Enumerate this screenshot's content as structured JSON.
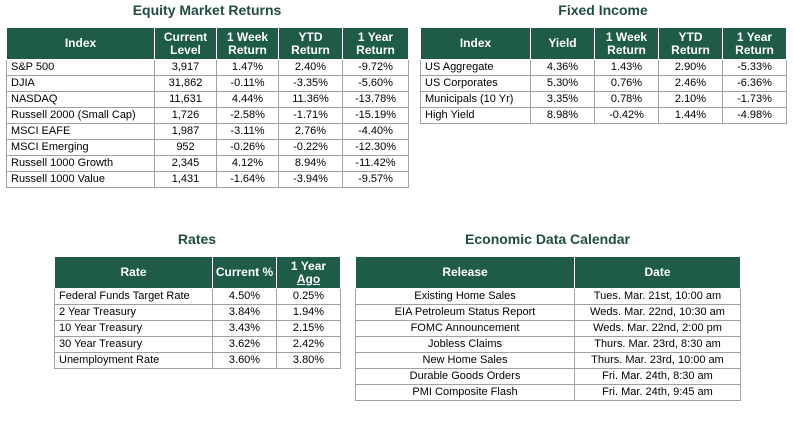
{
  "equity": {
    "title": "Equity Market Returns",
    "headers": [
      "Index",
      "Current Level",
      "1 Week Return",
      "YTD Return",
      "1 Year Return"
    ],
    "rows": [
      [
        "S&P 500",
        "3,917",
        "1.47%",
        "2.40%",
        "-9.72%"
      ],
      [
        "DJIA",
        "31,862",
        "-0.11%",
        "-3.35%",
        "-5.60%"
      ],
      [
        "NASDAQ",
        "11,631",
        "4.44%",
        "11.36%",
        "-13.78%"
      ],
      [
        "Russell 2000 (Small Cap)",
        "1,726",
        "-2.58%",
        "-1.71%",
        "-15.19%"
      ],
      [
        "MSCI EAFE",
        "1,987",
        "-3.11%",
        "2.76%",
        "-4.40%"
      ],
      [
        "MSCI Emerging",
        "952",
        "-0.26%",
        "-0.22%",
        "-12.30%"
      ],
      [
        "Russell 1000 Growth",
        "2,345",
        "4.12%",
        "8.94%",
        "-11.42%"
      ],
      [
        "Russell 1000 Value",
        "1,431",
        "-1.64%",
        "-3.94%",
        "-9.57%"
      ]
    ]
  },
  "fixed_income": {
    "title": "Fixed Income",
    "headers": [
      "Index",
      "Yield",
      "1 Week Return",
      "YTD Return",
      "1 Year Return"
    ],
    "rows": [
      [
        "US Aggregate",
        "4.36%",
        "1.43%",
        "2.90%",
        "-5.33%"
      ],
      [
        "US Corporates",
        "5.30%",
        "0.76%",
        "2.46%",
        "-6.36%"
      ],
      [
        "Municipals (10 Yr)",
        "3.35%",
        "0.78%",
        "2.10%",
        "-1.73%"
      ],
      [
        "High Yield",
        "8.98%",
        "-0.42%",
        "1.44%",
        "-4.98%"
      ]
    ]
  },
  "rates": {
    "title": "Rates",
    "headers": [
      "Rate",
      "Current %",
      "1 Year",
      "Ago"
    ],
    "rows": [
      [
        "Federal Funds Target Rate",
        "4.50%",
        "0.25%"
      ],
      [
        "2 Year Treasury",
        "3.84%",
        "1.94%"
      ],
      [
        "10 Year Treasury",
        "3.43%",
        "2.15%"
      ],
      [
        "30 Year Treasury",
        "3.62%",
        "2.42%"
      ],
      [
        "Unemployment Rate",
        "3.60%",
        "3.80%"
      ]
    ]
  },
  "calendar": {
    "title": "Economic Data Calendar",
    "headers": [
      "Release",
      "Date"
    ],
    "rows": [
      [
        "Existing Home Sales",
        "Tues. Mar. 21st, 10:00 am"
      ],
      [
        "EIA Petroleum Status Report",
        "Weds. Mar. 22nd, 10:30 am"
      ],
      [
        "FOMC Announcement",
        "Weds. Mar. 22nd, 2:00 pm"
      ],
      [
        "Jobless Claims",
        "Thurs. Mar. 23rd, 8:30 am"
      ],
      [
        "New Home Sales",
        "Thurs. Mar. 23rd, 10:00 am"
      ],
      [
        "Durable Goods Orders",
        "Fri. Mar. 24th, 8:30 am"
      ],
      [
        "PMI Composite Flash",
        "Fri. Mar. 24th, 9:45 am"
      ]
    ]
  }
}
